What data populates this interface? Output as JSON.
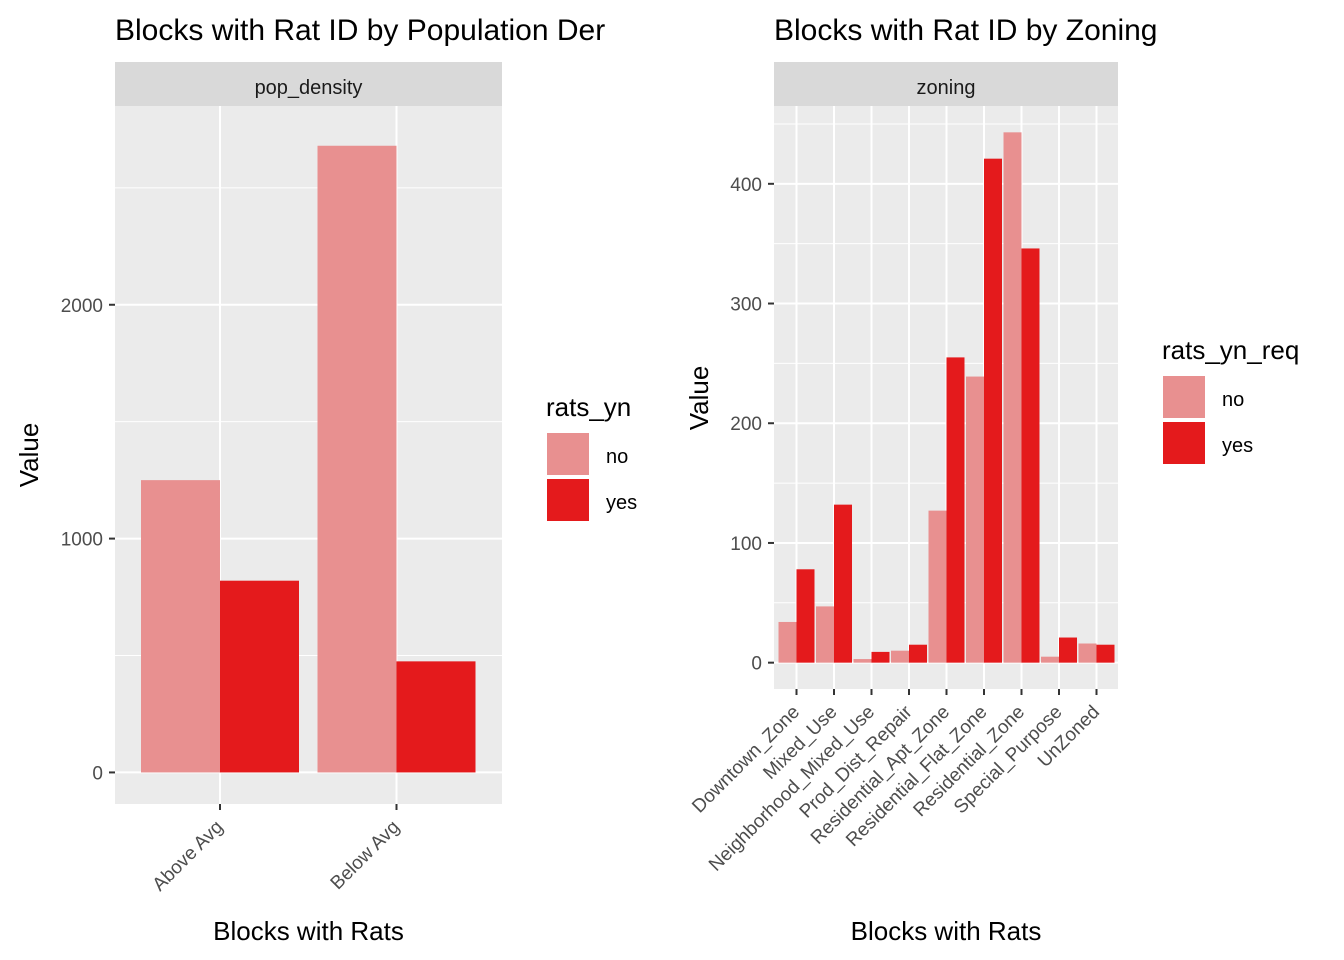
{
  "colors": {
    "no": "#E89090",
    "yes": "#E41A1C",
    "panel": "#EBEBEB",
    "strip": "#D9D9D9",
    "grid": "#FFFFFF",
    "tick": "#333333"
  },
  "chart_data": [
    {
      "type": "bar",
      "title": "Blocks with Rat ID by Population Der",
      "facet": "pop_density",
      "xlabel": "Blocks with Rats",
      "ylabel": "Value",
      "categories": [
        "Above Avg",
        "Below Avg"
      ],
      "series": [
        {
          "name": "no",
          "values": [
            1250,
            2680
          ]
        },
        {
          "name": "yes",
          "values": [
            820,
            475
          ]
        }
      ],
      "ylim": [
        -135,
        2850
      ],
      "yticks": [
        0,
        1000,
        2000
      ],
      "legend": {
        "title": "rats_yn",
        "labels": [
          "no",
          "yes"
        ],
        "position": "right"
      },
      "grid": true
    },
    {
      "type": "bar",
      "title": "Blocks with Rat ID by Zoning",
      "facet": "zoning",
      "xlabel": "Blocks with Rats",
      "ylabel": "Value",
      "categories": [
        "Downtown_Zone",
        "Mixed_Use",
        "Neighborhood_Mixed_Use",
        "Prod_Dist_Repair",
        "Residential_Apt_Zone",
        "Residential_Flat_Zone",
        "Residential_Zone",
        "Special_Purpose",
        "UnZoned"
      ],
      "series": [
        {
          "name": "no",
          "values": [
            34,
            47,
            3,
            10,
            127,
            239,
            443,
            5,
            16
          ]
        },
        {
          "name": "yes",
          "values": [
            78,
            132,
            9,
            15,
            255,
            421,
            346,
            21,
            15
          ]
        }
      ],
      "ylim": [
        -22,
        465
      ],
      "yticks": [
        0,
        100,
        200,
        300,
        400
      ],
      "legend": {
        "title": "rats_yn_req",
        "labels": [
          "no",
          "yes"
        ],
        "position": "right"
      },
      "grid": true
    }
  ]
}
